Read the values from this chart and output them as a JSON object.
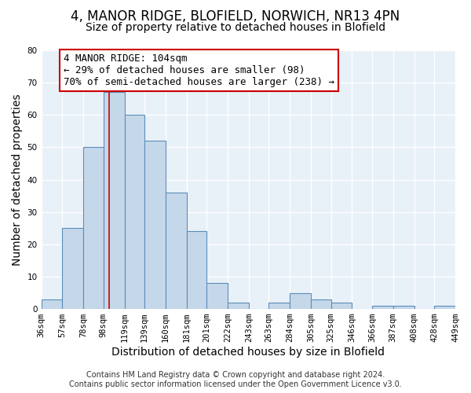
{
  "title": "4, MANOR RIDGE, BLOFIELD, NORWICH, NR13 4PN",
  "subtitle": "Size of property relative to detached houses in Blofield",
  "xlabel": "Distribution of detached houses by size in Blofield",
  "ylabel": "Number of detached properties",
  "bin_labels": [
    "36sqm",
    "57sqm",
    "78sqm",
    "98sqm",
    "119sqm",
    "139sqm",
    "160sqm",
    "181sqm",
    "201sqm",
    "222sqm",
    "243sqm",
    "263sqm",
    "284sqm",
    "305sqm",
    "325sqm",
    "346sqm",
    "366sqm",
    "387sqm",
    "408sqm",
    "428sqm",
    "449sqm"
  ],
  "bar_values": [
    3,
    25,
    50,
    67,
    60,
    52,
    36,
    24,
    8,
    2,
    0,
    2,
    5,
    3,
    2,
    0,
    1,
    1,
    0,
    1
  ],
  "bin_edges": [
    36,
    57,
    78,
    98,
    119,
    139,
    160,
    181,
    201,
    222,
    243,
    263,
    284,
    305,
    325,
    346,
    366,
    387,
    408,
    428,
    449
  ],
  "bar_color": "#c5d8ea",
  "bar_edge_color": "#5b8db8",
  "ylim": [
    0,
    80
  ],
  "yticks": [
    0,
    10,
    20,
    30,
    40,
    50,
    60,
    70,
    80
  ],
  "property_line_x": 104,
  "vline_color": "#cc0000",
  "annotation_line1": "4 MANOR RIDGE: 104sqm",
  "annotation_line2": "← 29% of detached houses are smaller (98)",
  "annotation_line3": "70% of semi-detached houses are larger (238) →",
  "annotation_box_color": "#cc0000",
  "footer_line1": "Contains HM Land Registry data © Crown copyright and database right 2024.",
  "footer_line2": "Contains public sector information licensed under the Open Government Licence v3.0.",
  "background_color": "#ffffff",
  "plot_bg_color": "#e8f0f8",
  "grid_color": "#ffffff",
  "title_fontsize": 12,
  "subtitle_fontsize": 10,
  "axis_label_fontsize": 10,
  "tick_fontsize": 7.5,
  "annotation_fontsize": 9,
  "footer_fontsize": 7
}
